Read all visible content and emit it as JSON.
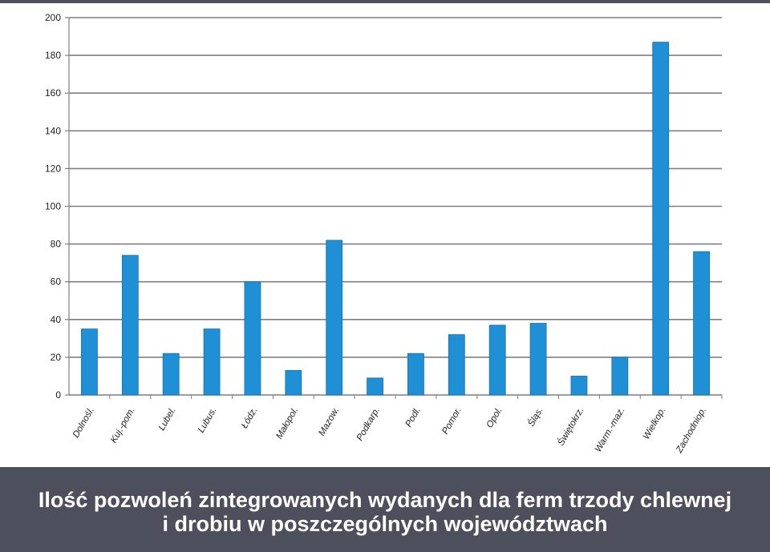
{
  "caption": {
    "line1": "Ilość pozwoleń zintegrowanych wydanych dla ferm trzody chlewnej",
    "line2": "i drobiu w poszczególnych województwach"
  },
  "colors": {
    "bar": "#1f8fd6",
    "bar_edge": "#156fb0",
    "grid": "#7f7f7f",
    "caption_bg": "#4d4f5c",
    "caption_text": "#ffffff"
  },
  "chart_data": {
    "type": "bar",
    "title": "",
    "xlabel": "",
    "ylabel": "",
    "ylim": [
      0,
      200
    ],
    "yticks": [
      0,
      20,
      40,
      60,
      80,
      100,
      120,
      140,
      160,
      180,
      200
    ],
    "grid": true,
    "legend": "none",
    "categories": [
      "Dolnośl.",
      "Kuj.-pom.",
      "Lubel.",
      "Lubus.",
      "Łódz.",
      "Małopol.",
      "Mazow.",
      "Podkarp.",
      "Podl.",
      "Pomor.",
      "Opol.",
      "Śląs.",
      "Świętokrz.",
      "Warm.-maz.",
      "Wielkop.",
      "Zachodniop."
    ],
    "values": [
      35,
      74,
      22,
      35,
      60,
      13,
      82,
      9,
      22,
      32,
      37,
      38,
      10,
      20,
      187,
      76
    ]
  }
}
